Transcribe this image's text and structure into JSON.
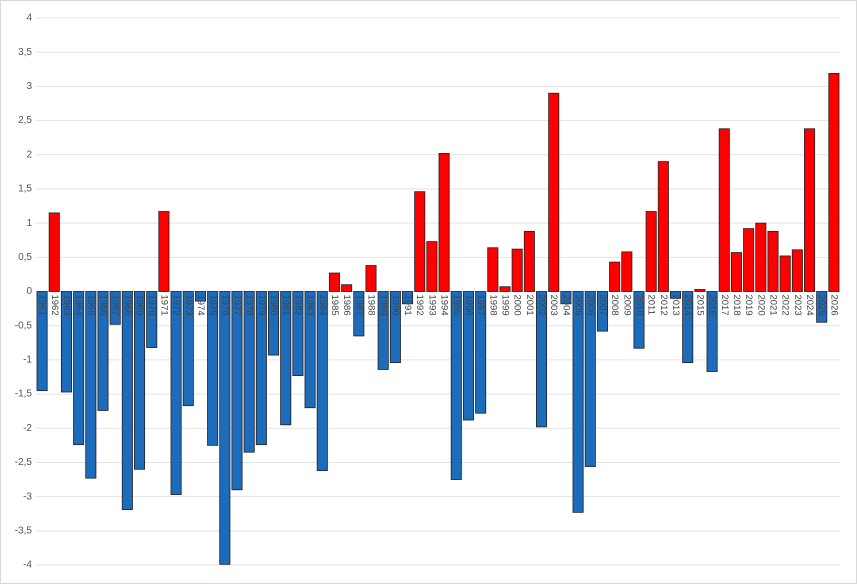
{
  "chart_data": {
    "type": "bar",
    "categories": [
      "1961",
      "1962",
      "1963",
      "1964",
      "1965",
      "1966",
      "1967",
      "1968",
      "1969",
      "1970",
      "1971",
      "1972",
      "1973",
      "1974",
      "1975",
      "1976",
      "1977",
      "1978",
      "1979",
      "1980",
      "1981",
      "1982",
      "1983",
      "1984",
      "1985",
      "1986",
      "1987",
      "1988",
      "1989",
      "1990",
      "1991",
      "1992",
      "1993",
      "1994",
      "1995",
      "1996",
      "1997",
      "1998",
      "1999",
      "2000",
      "2001",
      "2002",
      "2003",
      "2004",
      "2005",
      "2006",
      "2007",
      "2008",
      "2009",
      "2010",
      "2011",
      "2012",
      "2013",
      "2014",
      "2015",
      "2016",
      "2017",
      "2018",
      "2019",
      "2020",
      "2021",
      "2022",
      "2023",
      "2024",
      "2025",
      "2026"
    ],
    "values": [
      -1.45,
      1.15,
      -1.47,
      -2.24,
      -2.73,
      -1.74,
      -0.48,
      -3.19,
      -2.6,
      -0.82,
      1.17,
      -2.97,
      -1.67,
      -0.14,
      -2.25,
      -3.99,
      -2.9,
      -2.35,
      -2.24,
      -0.93,
      -1.95,
      -1.23,
      -1.7,
      -2.62,
      0.27,
      0.1,
      -0.65,
      0.38,
      -1.14,
      -1.04,
      -0.18,
      1.46,
      0.73,
      2.02,
      -2.75,
      -1.88,
      -1.78,
      0.64,
      0.07,
      0.62,
      0.88,
      -1.98,
      2.9,
      -0.18,
      -3.23,
      -2.56,
      -0.58,
      0.43,
      0.58,
      -0.83,
      1.17,
      1.9,
      -0.1,
      -1.04,
      0.03,
      -1.17,
      2.38,
      0.57,
      0.92,
      1.0,
      0.88,
      0.52,
      0.61,
      2.38,
      -0.45,
      3.19
    ],
    "positive_color": "#ff0000",
    "negative_color": "#1c6cbb",
    "ylim": [
      -4,
      4
    ],
    "yticks": [
      -4,
      {
        "value": -3.5,
        "label": "-3,5"
      },
      -3,
      {
        "value": -2.5,
        "label": "-2,5"
      },
      -2,
      {
        "value": -1.5,
        "label": "-1,5"
      },
      -1,
      {
        "value": -0.5,
        "label": "-0,5"
      },
      0,
      {
        "value": 0.5,
        "label": "0,5"
      },
      1,
      {
        "value": 1.5,
        "label": "1,5"
      },
      2,
      {
        "value": 2.5,
        "label": "2,5"
      },
      3,
      {
        "value": 3.5,
        "label": "3,5"
      },
      4
    ],
    "grid": true
  }
}
